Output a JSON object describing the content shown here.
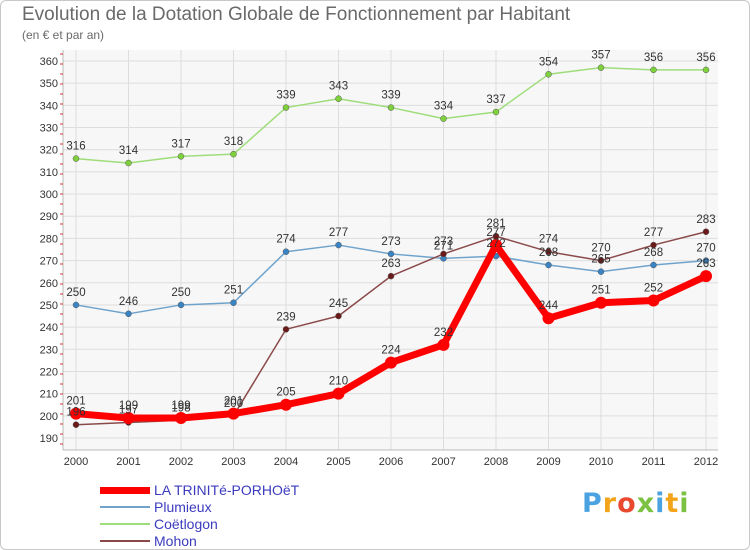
{
  "chart_data": {
    "type": "line",
    "title": "Evolution de la Dotation Globale de Fonctionnement par Habitant",
    "subtitle": "(en € et par an)",
    "categories": [
      "2000",
      "2001",
      "2002",
      "2003",
      "2004",
      "2005",
      "2006",
      "2007",
      "2008",
      "2009",
      "2010",
      "2011",
      "2012"
    ],
    "ylim": [
      190,
      360
    ],
    "yticks": [
      190,
      200,
      210,
      220,
      230,
      240,
      250,
      260,
      270,
      280,
      290,
      300,
      310,
      320,
      330,
      340,
      350,
      360
    ],
    "series": [
      {
        "name": "LA TRINITé-PORHOëT",
        "color": "#ff0000",
        "marker": "#ff0000",
        "width": 7,
        "r": 6,
        "values": [
          201,
          199,
          199,
          201,
          205,
          210,
          224,
          232,
          277,
          244,
          251,
          252,
          263
        ]
      },
      {
        "name": "Plumieux",
        "color": "#6fa3cc",
        "marker": "#3a84c4",
        "width": 1.5,
        "r": 3,
        "values": [
          250,
          246,
          250,
          251,
          274,
          277,
          273,
          271,
          272,
          268,
          265,
          268,
          270
        ]
      },
      {
        "name": "Coëtlogon",
        "color": "#9edd7a",
        "marker": "#7ed03c",
        "width": 1.5,
        "r": 3,
        "values": [
          316,
          314,
          317,
          318,
          339,
          343,
          339,
          334,
          337,
          354,
          357,
          356,
          356
        ]
      },
      {
        "name": "Mohon",
        "color": "#8b4a4a",
        "marker": "#6b1a1a",
        "width": 1.5,
        "r": 3,
        "values": [
          196,
          197,
          198,
          200,
          239,
          245,
          263,
          273,
          281,
          274,
          270,
          277,
          283
        ]
      }
    ]
  },
  "legend": {
    "items": [
      {
        "label": "LA TRINITé-PORHOëT"
      },
      {
        "label": "Plumieux"
      },
      {
        "label": "Coëtlogon"
      },
      {
        "label": "Mohon"
      }
    ]
  },
  "logo": {
    "letters": [
      {
        "ch": "P",
        "color": "#4aa3e0"
      },
      {
        "ch": "r",
        "color": "#f2a51a"
      },
      {
        "ch": "o",
        "color": "#e8492f"
      },
      {
        "ch": "x",
        "color": "#7cc242"
      },
      {
        "ch": "i",
        "color": "#4aa3e0"
      },
      {
        "ch": "t",
        "color": "#f2a51a"
      },
      {
        "ch": "i",
        "color": "#7cc242"
      }
    ]
  }
}
